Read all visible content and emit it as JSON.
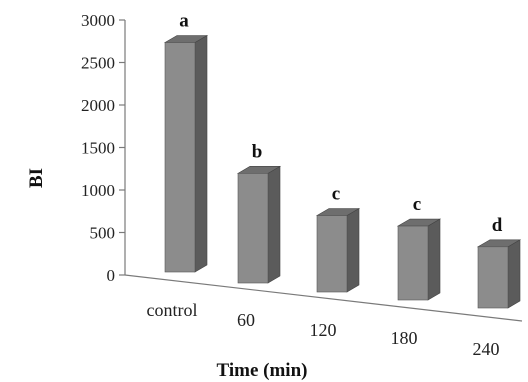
{
  "chart_data": {
    "type": "bar",
    "style": "3d-column",
    "categories": [
      "control",
      "60",
      "120",
      "180",
      "240"
    ],
    "values": [
      2700,
      1290,
      900,
      870,
      720
    ],
    "significance_letters": [
      "a",
      "b",
      "c",
      "c",
      "d"
    ],
    "xlabel": "Time (min)",
    "ylabel": "BI",
    "ylim": [
      0,
      3000
    ],
    "yticks": [
      "0",
      "500",
      "1000",
      "1500",
      "2000",
      "2500",
      "3000"
    ],
    "grid": false,
    "legend": "none",
    "colors": {
      "bar_front": "#8c8c8c",
      "bar_side": "#5b5b5b",
      "bar_top": "#6e6e6e",
      "axis": "#7a7a7a"
    }
  }
}
